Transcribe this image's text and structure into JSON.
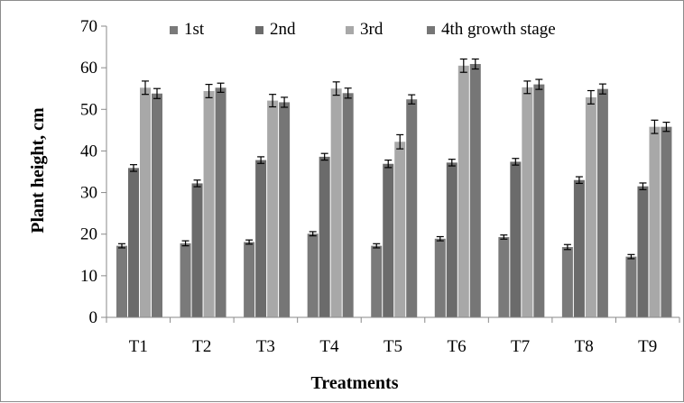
{
  "chart_data": {
    "type": "bar",
    "title": "",
    "xlabel": "Treatments",
    "ylabel": "Plant height, cm",
    "ylim": [
      0,
      70
    ],
    "yticks": [
      "0",
      "10",
      "20",
      "30",
      "40",
      "50",
      "60",
      "70"
    ],
    "grid": false,
    "legend_position": "top",
    "categories": [
      "T1",
      "T2",
      "T3",
      "T4",
      "T5",
      "T6",
      "T7",
      "T8",
      "T9"
    ],
    "series": [
      {
        "name": "1st",
        "color": "#7a7a7a",
        "values": [
          17.2,
          17.8,
          18.1,
          20.1,
          17.2,
          18.9,
          19.3,
          16.9,
          14.6
        ],
        "errors": [
          0.5,
          0.6,
          0.5,
          0.5,
          0.5,
          0.5,
          0.5,
          0.6,
          0.5
        ]
      },
      {
        "name": "2nd",
        "color": "#6b6b6b",
        "values": [
          35.9,
          32.2,
          37.8,
          38.6,
          36.9,
          37.2,
          37.4,
          33.0,
          31.5
        ],
        "errors": [
          0.8,
          0.8,
          0.8,
          0.8,
          0.9,
          0.8,
          0.8,
          0.8,
          0.8
        ]
      },
      {
        "name": "3rd",
        "color": "#a8a8a8",
        "values": [
          55.2,
          54.4,
          52.1,
          55.0,
          42.2,
          60.5,
          55.3,
          52.9,
          45.8
        ],
        "errors": [
          1.6,
          1.6,
          1.5,
          1.6,
          1.7,
          1.6,
          1.5,
          1.6,
          1.6
        ]
      },
      {
        "name": "4th growth stage",
        "color": "#767676",
        "values": [
          53.8,
          55.2,
          51.7,
          53.9,
          52.4,
          60.9,
          56.0,
          54.9,
          45.8
        ],
        "errors": [
          1.2,
          1.1,
          1.2,
          1.2,
          1.1,
          1.2,
          1.2,
          1.2,
          1.1
        ]
      }
    ]
  }
}
